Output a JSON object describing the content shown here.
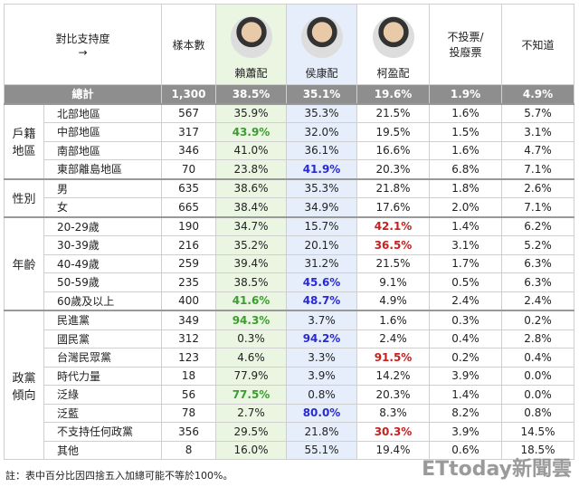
{
  "header": {
    "title": "對比支持度",
    "arrow": "→",
    "columns": [
      "樣本數",
      "賴蕭配",
      "侯康配",
      "柯盈配",
      "不投票/\n投廢票",
      "不知道"
    ]
  },
  "highlight_colors": [
    null,
    "#3a9e2f",
    "#2a2ad0",
    "#c8201e",
    null,
    null
  ],
  "total": {
    "label": "總計",
    "cells": [
      "1,300",
      "38.5%",
      "35.1%",
      "19.6%",
      "1.9%",
      "4.9%"
    ]
  },
  "groups": [
    {
      "label": "戶籍地區",
      "rows": [
        {
          "label": "北部地區",
          "cells": [
            "567",
            "35.9%",
            "35.3%",
            "21.5%",
            "1.6%",
            "5.7%"
          ]
        },
        {
          "label": "中部地區",
          "cells": [
            "317",
            "43.9%",
            "32.0%",
            "19.5%",
            "1.5%",
            "3.1%"
          ],
          "highlight": 1
        },
        {
          "label": "南部地區",
          "cells": [
            "346",
            "41.0%",
            "36.1%",
            "16.6%",
            "1.6%",
            "4.7%"
          ]
        },
        {
          "label": "東部離島地區",
          "cells": [
            "70",
            "23.8%",
            "41.9%",
            "20.3%",
            "6.8%",
            "7.1%"
          ],
          "highlight": 2
        }
      ]
    },
    {
      "label": "性別",
      "rows": [
        {
          "label": "男",
          "cells": [
            "635",
            "38.6%",
            "35.3%",
            "21.8%",
            "1.8%",
            "2.6%"
          ]
        },
        {
          "label": "女",
          "cells": [
            "665",
            "38.4%",
            "34.9%",
            "17.6%",
            "2.0%",
            "7.1%"
          ]
        }
      ]
    },
    {
      "label": "年齡",
      "rows": [
        {
          "label": "20-29歲",
          "cells": [
            "190",
            "34.7%",
            "15.7%",
            "42.1%",
            "1.4%",
            "6.2%"
          ],
          "highlight": 3
        },
        {
          "label": "30-39歲",
          "cells": [
            "216",
            "35.2%",
            "20.1%",
            "36.5%",
            "3.1%",
            "5.2%"
          ],
          "highlight": 3
        },
        {
          "label": "40-49歲",
          "cells": [
            "259",
            "39.4%",
            "31.2%",
            "21.5%",
            "1.7%",
            "6.3%"
          ]
        },
        {
          "label": "50-59歲",
          "cells": [
            "235",
            "38.5%",
            "45.6%",
            "9.1%",
            "0.5%",
            "6.3%"
          ],
          "highlight": 2
        },
        {
          "label": "60歲及以上",
          "cells": [
            "400",
            "41.6%",
            "48.7%",
            "4.9%",
            "2.4%",
            "2.4%"
          ],
          "highlight": 2,
          "highlight_also": 1
        }
      ]
    },
    {
      "label": "政黨傾向",
      "rows": [
        {
          "label": "民進黨",
          "cells": [
            "349",
            "94.3%",
            "3.7%",
            "1.6%",
            "0.3%",
            "0.2%"
          ],
          "highlight": 1
        },
        {
          "label": "國民黨",
          "cells": [
            "312",
            "0.3%",
            "94.2%",
            "2.4%",
            "0.4%",
            "2.8%"
          ],
          "highlight": 2
        },
        {
          "label": "台灣民眾黨",
          "cells": [
            "123",
            "4.6%",
            "3.3%",
            "91.5%",
            "0.2%",
            "0.4%"
          ],
          "highlight": 3
        },
        {
          "label": "時代力量",
          "cells": [
            "18",
            "77.9%",
            "3.9%",
            "14.2%",
            "3.9%",
            "0.0%"
          ]
        },
        {
          "label": "泛綠",
          "cells": [
            "56",
            "77.5%",
            "0.8%",
            "20.3%",
            "1.4%",
            "0.0%"
          ],
          "highlight": 1
        },
        {
          "label": "泛藍",
          "cells": [
            "78",
            "2.7%",
            "80.0%",
            "8.3%",
            "8.2%",
            "0.8%"
          ],
          "highlight": 2
        },
        {
          "label": "不支持任何政黨",
          "cells": [
            "356",
            "29.5%",
            "21.8%",
            "30.3%",
            "3.9%",
            "14.5%"
          ],
          "highlight": 3
        },
        {
          "label": "其他",
          "cells": [
            "8",
            "16.0%",
            "55.1%",
            "19.4%",
            "0.6%",
            "18.5%"
          ]
        }
      ]
    }
  ],
  "footnote": "註：表中百分比因四捨五入加總可能不等於100%。",
  "watermark": "ETtoday新聞雲"
}
